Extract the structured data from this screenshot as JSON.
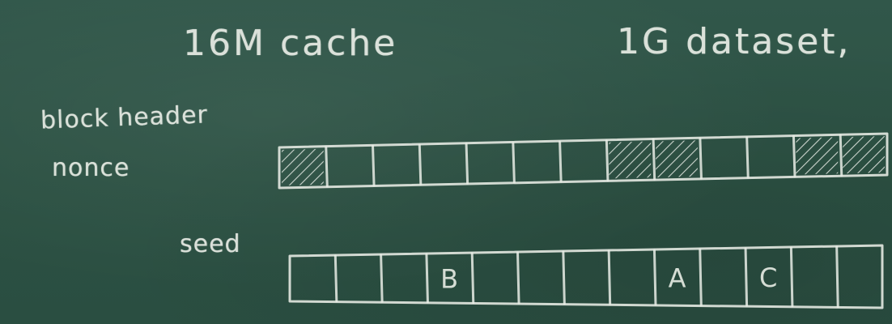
{
  "board": {
    "title_cache": "16M cache",
    "title_dataset": "1G dataset,",
    "label_block_header": "block header",
    "label_nonce": "nonce",
    "label_seed": "seed",
    "chalk_color": "#e9ede6",
    "board_color": "#2f5446"
  },
  "dataset_array": {
    "cell_count": 13,
    "hatched_cells": [
      0,
      7,
      8,
      11,
      12
    ]
  },
  "cache_array": {
    "cell_count": 13,
    "cell_labels": [
      "",
      "",
      "",
      "B",
      "",
      "",
      "",
      "",
      "A",
      "",
      "C",
      "",
      ""
    ]
  }
}
